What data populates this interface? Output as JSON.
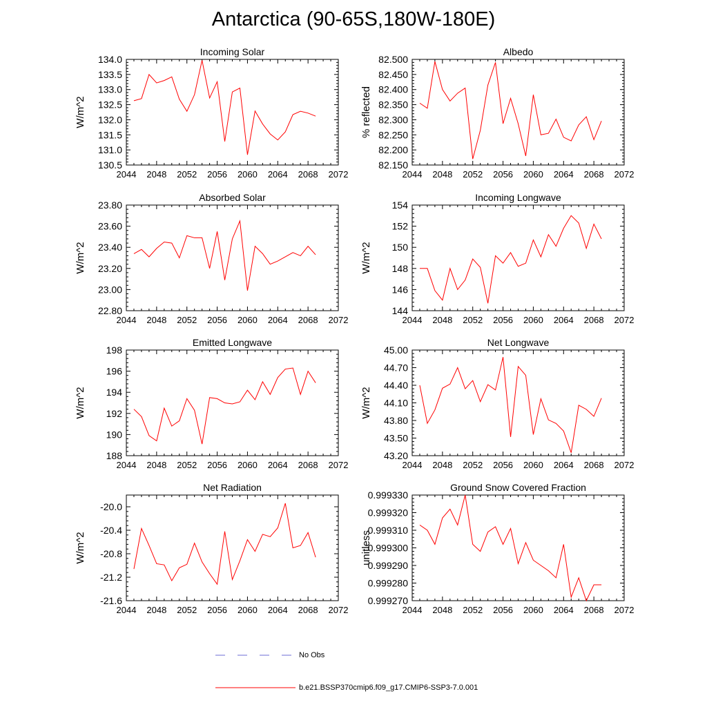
{
  "title": "Antarctica (90-65S,180W-180E)",
  "colors": {
    "series": "#ff0000",
    "obs": "#6b6bd6",
    "axis": "#000000"
  },
  "legend": {
    "entries": [
      {
        "label": "No Obs",
        "color": "#6b6bd6",
        "style": "dashed"
      },
      {
        "label": "b.e21.BSSP370cmip6.f09_g17.CMIP6-SSP3-7.0.001",
        "color": "#ff0000",
        "style": "solid"
      }
    ]
  },
  "chart_data": [
    {
      "type": "line",
      "title": "Incoming Solar",
      "xlabel": "",
      "ylabel": "W/m^2",
      "xlim": [
        2044,
        2072
      ],
      "ylim": [
        130.5,
        134.0
      ],
      "xticks": [
        2044,
        2048,
        2052,
        2056,
        2060,
        2064,
        2068,
        2072
      ],
      "yticks": [
        "130.5",
        "131.0",
        "131.5",
        "132.0",
        "132.5",
        "133.0",
        "133.5",
        "134.0"
      ],
      "x": [
        2045,
        2046,
        2047,
        2048,
        2049,
        2050,
        2051,
        2052,
        2053,
        2054,
        2055,
        2056,
        2057,
        2058,
        2059,
        2060,
        2061,
        2062,
        2063,
        2064,
        2065,
        2066,
        2067,
        2068,
        2069
      ],
      "series": [
        {
          "name": "b.e21.BSSP370cmip6.f09_g17.CMIP6-SSP3-7.0.001",
          "values": [
            132.63,
            132.7,
            133.5,
            133.22,
            133.3,
            133.42,
            132.68,
            132.28,
            132.83,
            133.97,
            132.72,
            133.26,
            131.28,
            132.92,
            133.05,
            130.84,
            132.29,
            131.86,
            131.53,
            131.33,
            131.6,
            132.17,
            132.28,
            132.22,
            132.12
          ]
        }
      ]
    },
    {
      "type": "line",
      "title": "Albedo",
      "xlabel": "",
      "ylabel": "% reflected",
      "xlim": [
        2044,
        2072
      ],
      "ylim": [
        82.15,
        82.5
      ],
      "xticks": [
        2044,
        2048,
        2052,
        2056,
        2060,
        2064,
        2068,
        2072
      ],
      "yticks": [
        "82.150",
        "82.200",
        "82.250",
        "82.300",
        "82.350",
        "82.400",
        "82.450",
        "82.500"
      ],
      "x": [
        2045,
        2046,
        2047,
        2048,
        2049,
        2050,
        2051,
        2052,
        2053,
        2054,
        2055,
        2056,
        2057,
        2058,
        2059,
        2060,
        2061,
        2062,
        2063,
        2064,
        2065,
        2066,
        2067,
        2068,
        2069
      ],
      "series": [
        {
          "name": "b.e21.BSSP370cmip6.f09_g17.CMIP6-SSP3-7.0.001",
          "values": [
            82.355,
            82.338,
            82.493,
            82.4,
            82.362,
            82.388,
            82.405,
            82.17,
            82.265,
            82.415,
            82.49,
            82.287,
            82.371,
            82.287,
            82.18,
            82.383,
            82.25,
            82.255,
            82.302,
            82.242,
            82.23,
            82.283,
            82.31,
            82.234,
            82.296
          ]
        }
      ]
    },
    {
      "type": "line",
      "title": "Absorbed Solar",
      "xlabel": "",
      "ylabel": "W/m^2",
      "xlim": [
        2044,
        2072
      ],
      "ylim": [
        22.8,
        23.8
      ],
      "xticks": [
        2044,
        2048,
        2052,
        2056,
        2060,
        2064,
        2068,
        2072
      ],
      "yticks": [
        "22.80",
        "23.00",
        "23.20",
        "23.40",
        "23.60",
        "23.80"
      ],
      "x": [
        2045,
        2046,
        2047,
        2048,
        2049,
        2050,
        2051,
        2052,
        2053,
        2054,
        2055,
        2056,
        2057,
        2058,
        2059,
        2060,
        2061,
        2062,
        2063,
        2064,
        2065,
        2066,
        2067,
        2068,
        2069
      ],
      "series": [
        {
          "name": "b.e21.BSSP370cmip6.f09_g17.CMIP6-SSP3-7.0.001",
          "values": [
            23.34,
            23.38,
            23.31,
            23.39,
            23.45,
            23.44,
            23.3,
            23.51,
            23.49,
            23.49,
            23.2,
            23.55,
            23.09,
            23.48,
            23.65,
            22.99,
            23.41,
            23.34,
            23.24,
            23.27,
            23.31,
            23.35,
            23.32,
            23.41,
            23.33
          ]
        }
      ]
    },
    {
      "type": "line",
      "title": "Incoming Longwave",
      "xlabel": "",
      "ylabel": "W/m^2",
      "xlim": [
        2044,
        2072
      ],
      "ylim": [
        144,
        154
      ],
      "xticks": [
        2044,
        2048,
        2052,
        2056,
        2060,
        2064,
        2068,
        2072
      ],
      "yticks": [
        "144",
        "146",
        "148",
        "150",
        "152",
        "154"
      ],
      "x": [
        2045,
        2046,
        2047,
        2048,
        2049,
        2050,
        2051,
        2052,
        2053,
        2054,
        2055,
        2056,
        2057,
        2058,
        2059,
        2060,
        2061,
        2062,
        2063,
        2064,
        2065,
        2066,
        2067,
        2068,
        2069
      ],
      "series": [
        {
          "name": "b.e21.BSSP370cmip6.f09_g17.CMIP6-SSP3-7.0.001",
          "values": [
            148.0,
            148.0,
            145.9,
            145.0,
            148.0,
            146.0,
            146.9,
            148.9,
            148.1,
            144.7,
            149.2,
            148.5,
            149.5,
            148.2,
            148.5,
            150.7,
            149.1,
            151.2,
            150.1,
            151.8,
            153.0,
            152.3,
            149.9,
            152.2,
            150.8
          ]
        }
      ]
    },
    {
      "type": "line",
      "title": "Emitted Longwave",
      "xlabel": "",
      "ylabel": "W/m^2",
      "xlim": [
        2044,
        2072
      ],
      "ylim": [
        188,
        198
      ],
      "xticks": [
        2044,
        2048,
        2052,
        2056,
        2060,
        2064,
        2068,
        2072
      ],
      "yticks": [
        "188",
        "190",
        "192",
        "194",
        "196",
        "198"
      ],
      "x": [
        2045,
        2046,
        2047,
        2048,
        2049,
        2050,
        2051,
        2052,
        2053,
        2054,
        2055,
        2056,
        2057,
        2058,
        2059,
        2060,
        2061,
        2062,
        2063,
        2064,
        2065,
        2066,
        2067,
        2068,
        2069
      ],
      "series": [
        {
          "name": "b.e21.BSSP370cmip6.f09_g17.CMIP6-SSP3-7.0.001",
          "values": [
            192.4,
            191.7,
            189.9,
            189.4,
            192.5,
            190.8,
            191.3,
            193.4,
            192.3,
            189.1,
            193.5,
            193.4,
            193.0,
            192.9,
            193.1,
            194.2,
            193.3,
            195.0,
            193.8,
            195.4,
            196.2,
            196.3,
            193.8,
            196.0,
            194.9
          ]
        }
      ]
    },
    {
      "type": "line",
      "title": "Net Longwave",
      "xlabel": "",
      "ylabel": "W/m^2",
      "xlim": [
        2044,
        2072
      ],
      "ylim": [
        43.2,
        45.0
      ],
      "xticks": [
        2044,
        2048,
        2052,
        2056,
        2060,
        2064,
        2068,
        2072
      ],
      "yticks": [
        "43.20",
        "43.50",
        "43.80",
        "44.10",
        "44.40",
        "44.70",
        "45.00"
      ],
      "x": [
        2045,
        2046,
        2047,
        2048,
        2049,
        2050,
        2051,
        2052,
        2053,
        2054,
        2055,
        2056,
        2057,
        2058,
        2059,
        2060,
        2061,
        2062,
        2063,
        2064,
        2065,
        2066,
        2067,
        2068,
        2069
      ],
      "series": [
        {
          "name": "b.e21.BSSP370cmip6.f09_g17.CMIP6-SSP3-7.0.001",
          "values": [
            44.4,
            43.75,
            43.98,
            44.35,
            44.42,
            44.7,
            44.34,
            44.48,
            44.12,
            44.41,
            44.32,
            44.88,
            43.52,
            44.72,
            44.57,
            43.56,
            44.17,
            43.81,
            43.75,
            43.62,
            43.25,
            44.06,
            43.99,
            43.87,
            44.18
          ]
        }
      ]
    },
    {
      "type": "line",
      "title": "Net Radiation",
      "xlabel": "",
      "ylabel": "W/m^2",
      "xlim": [
        2044,
        2072
      ],
      "ylim": [
        -21.6,
        -19.8
      ],
      "xticks": [
        2044,
        2048,
        2052,
        2056,
        2060,
        2064,
        2068,
        2072
      ],
      "yticks": [
        "-21.6",
        "-21.2",
        "-20.8",
        "-20.4",
        "-20.0"
      ],
      "x": [
        2045,
        2046,
        2047,
        2048,
        2049,
        2050,
        2051,
        2052,
        2053,
        2054,
        2055,
        2056,
        2057,
        2058,
        2059,
        2060,
        2061,
        2062,
        2063,
        2064,
        2065,
        2066,
        2067,
        2068,
        2069
      ],
      "series": [
        {
          "name": "b.e21.BSSP370cmip6.f09_g17.CMIP6-SSP3-7.0.001",
          "values": [
            -21.06,
            -20.37,
            -20.66,
            -20.97,
            -20.99,
            -21.26,
            -21.04,
            -20.98,
            -20.62,
            -20.94,
            -21.14,
            -21.32,
            -20.42,
            -21.24,
            -20.92,
            -20.56,
            -20.76,
            -20.47,
            -20.51,
            -20.36,
            -19.94,
            -20.7,
            -20.66,
            -20.44,
            -20.86
          ]
        }
      ]
    },
    {
      "type": "line",
      "title": "Ground Snow Covered Fraction",
      "xlabel": "",
      "ylabel": "unitless",
      "xlim": [
        2044,
        2072
      ],
      "ylim": [
        0.99927,
        0.99933
      ],
      "xticks": [
        2044,
        2048,
        2052,
        2056,
        2060,
        2064,
        2068,
        2072
      ],
      "yticks": [
        "0.999270",
        "0.999280",
        "0.999290",
        "0.999300",
        "0.999310",
        "0.999320",
        "0.999330"
      ],
      "x": [
        2045,
        2046,
        2047,
        2048,
        2049,
        2050,
        2051,
        2052,
        2053,
        2054,
        2055,
        2056,
        2057,
        2058,
        2059,
        2060,
        2061,
        2062,
        2063,
        2064,
        2065,
        2066,
        2067,
        2068,
        2069
      ],
      "series": [
        {
          "name": "b.e21.BSSP370cmip6.f09_g17.CMIP6-SSP3-7.0.001",
          "values": [
            0.999313,
            0.99931,
            0.999302,
            0.999317,
            0.999322,
            0.999313,
            0.99933,
            0.999302,
            0.999298,
            0.999309,
            0.999312,
            0.999302,
            0.999311,
            0.999291,
            0.999303,
            0.999293,
            0.99929,
            0.999287,
            0.999283,
            0.999302,
            0.999272,
            0.999283,
            0.99927,
            0.999279,
            0.999279
          ]
        }
      ]
    }
  ]
}
